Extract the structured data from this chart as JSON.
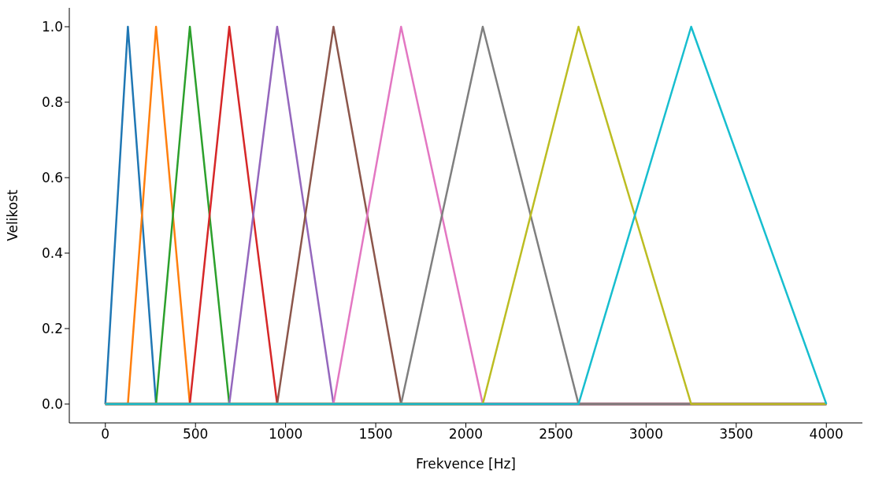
{
  "chart_data": {
    "type": "line",
    "xlabel": "Frekvence [Hz]",
    "ylabel": "Velikost",
    "xlim": [
      -200,
      4200
    ],
    "ylim": [
      -0.05,
      1.05
    ],
    "xticks": [
      0,
      500,
      1000,
      1500,
      2000,
      2500,
      3000,
      3500,
      4000
    ],
    "yticks": [
      {
        "value": 0,
        "label": "0.0"
      },
      {
        "value": 0.2,
        "label": "0.2"
      },
      {
        "value": 0.4,
        "label": "0.4"
      },
      {
        "value": 0.6,
        "label": "0.6"
      },
      {
        "value": 0.8,
        "label": "0.8"
      },
      {
        "value": 1,
        "label": "1.0"
      }
    ],
    "grid": false,
    "marker": "none",
    "line_style": "solid",
    "series": [
      {
        "color": "#1f77b4",
        "x": [
          0,
          125,
          281.25,
          4000
        ],
        "values": [
          0,
          1,
          0,
          0
        ]
      },
      {
        "color": "#ff7f0e",
        "x": [
          0,
          125,
          281.25,
          468.75,
          4000
        ],
        "values": [
          0,
          0,
          1,
          0,
          0
        ]
      },
      {
        "color": "#2ca02c",
        "x": [
          0,
          281.25,
          468.75,
          687.5,
          4000
        ],
        "values": [
          0,
          0,
          1,
          0,
          0
        ]
      },
      {
        "color": "#d62728",
        "x": [
          0,
          468.75,
          687.5,
          953.125,
          4000
        ],
        "values": [
          0,
          0,
          1,
          0,
          0
        ]
      },
      {
        "color": "#9467bd",
        "x": [
          0,
          687.5,
          953.125,
          1265.625,
          4000
        ],
        "values": [
          0,
          0,
          1,
          0,
          0
        ]
      },
      {
        "color": "#8c564b",
        "x": [
          0,
          953.125,
          1265.625,
          1640.625,
          4000
        ],
        "values": [
          0,
          0,
          1,
          0,
          0
        ]
      },
      {
        "color": "#e377c2",
        "x": [
          0,
          1265.625,
          1640.625,
          2093.75,
          4000
        ],
        "values": [
          0,
          0,
          1,
          0,
          0
        ]
      },
      {
        "color": "#7f7f7f",
        "x": [
          0,
          1640.625,
          2093.75,
          2625,
          4000
        ],
        "values": [
          0,
          0,
          1,
          0,
          0
        ]
      },
      {
        "color": "#bcbd22",
        "x": [
          0,
          2093.75,
          2625,
          3250,
          4000
        ],
        "values": [
          0,
          0,
          1,
          0,
          0
        ]
      },
      {
        "color": "#17becf",
        "x": [
          0,
          2625,
          3250,
          4000
        ],
        "values": [
          0,
          0,
          1,
          0
        ]
      }
    ]
  }
}
